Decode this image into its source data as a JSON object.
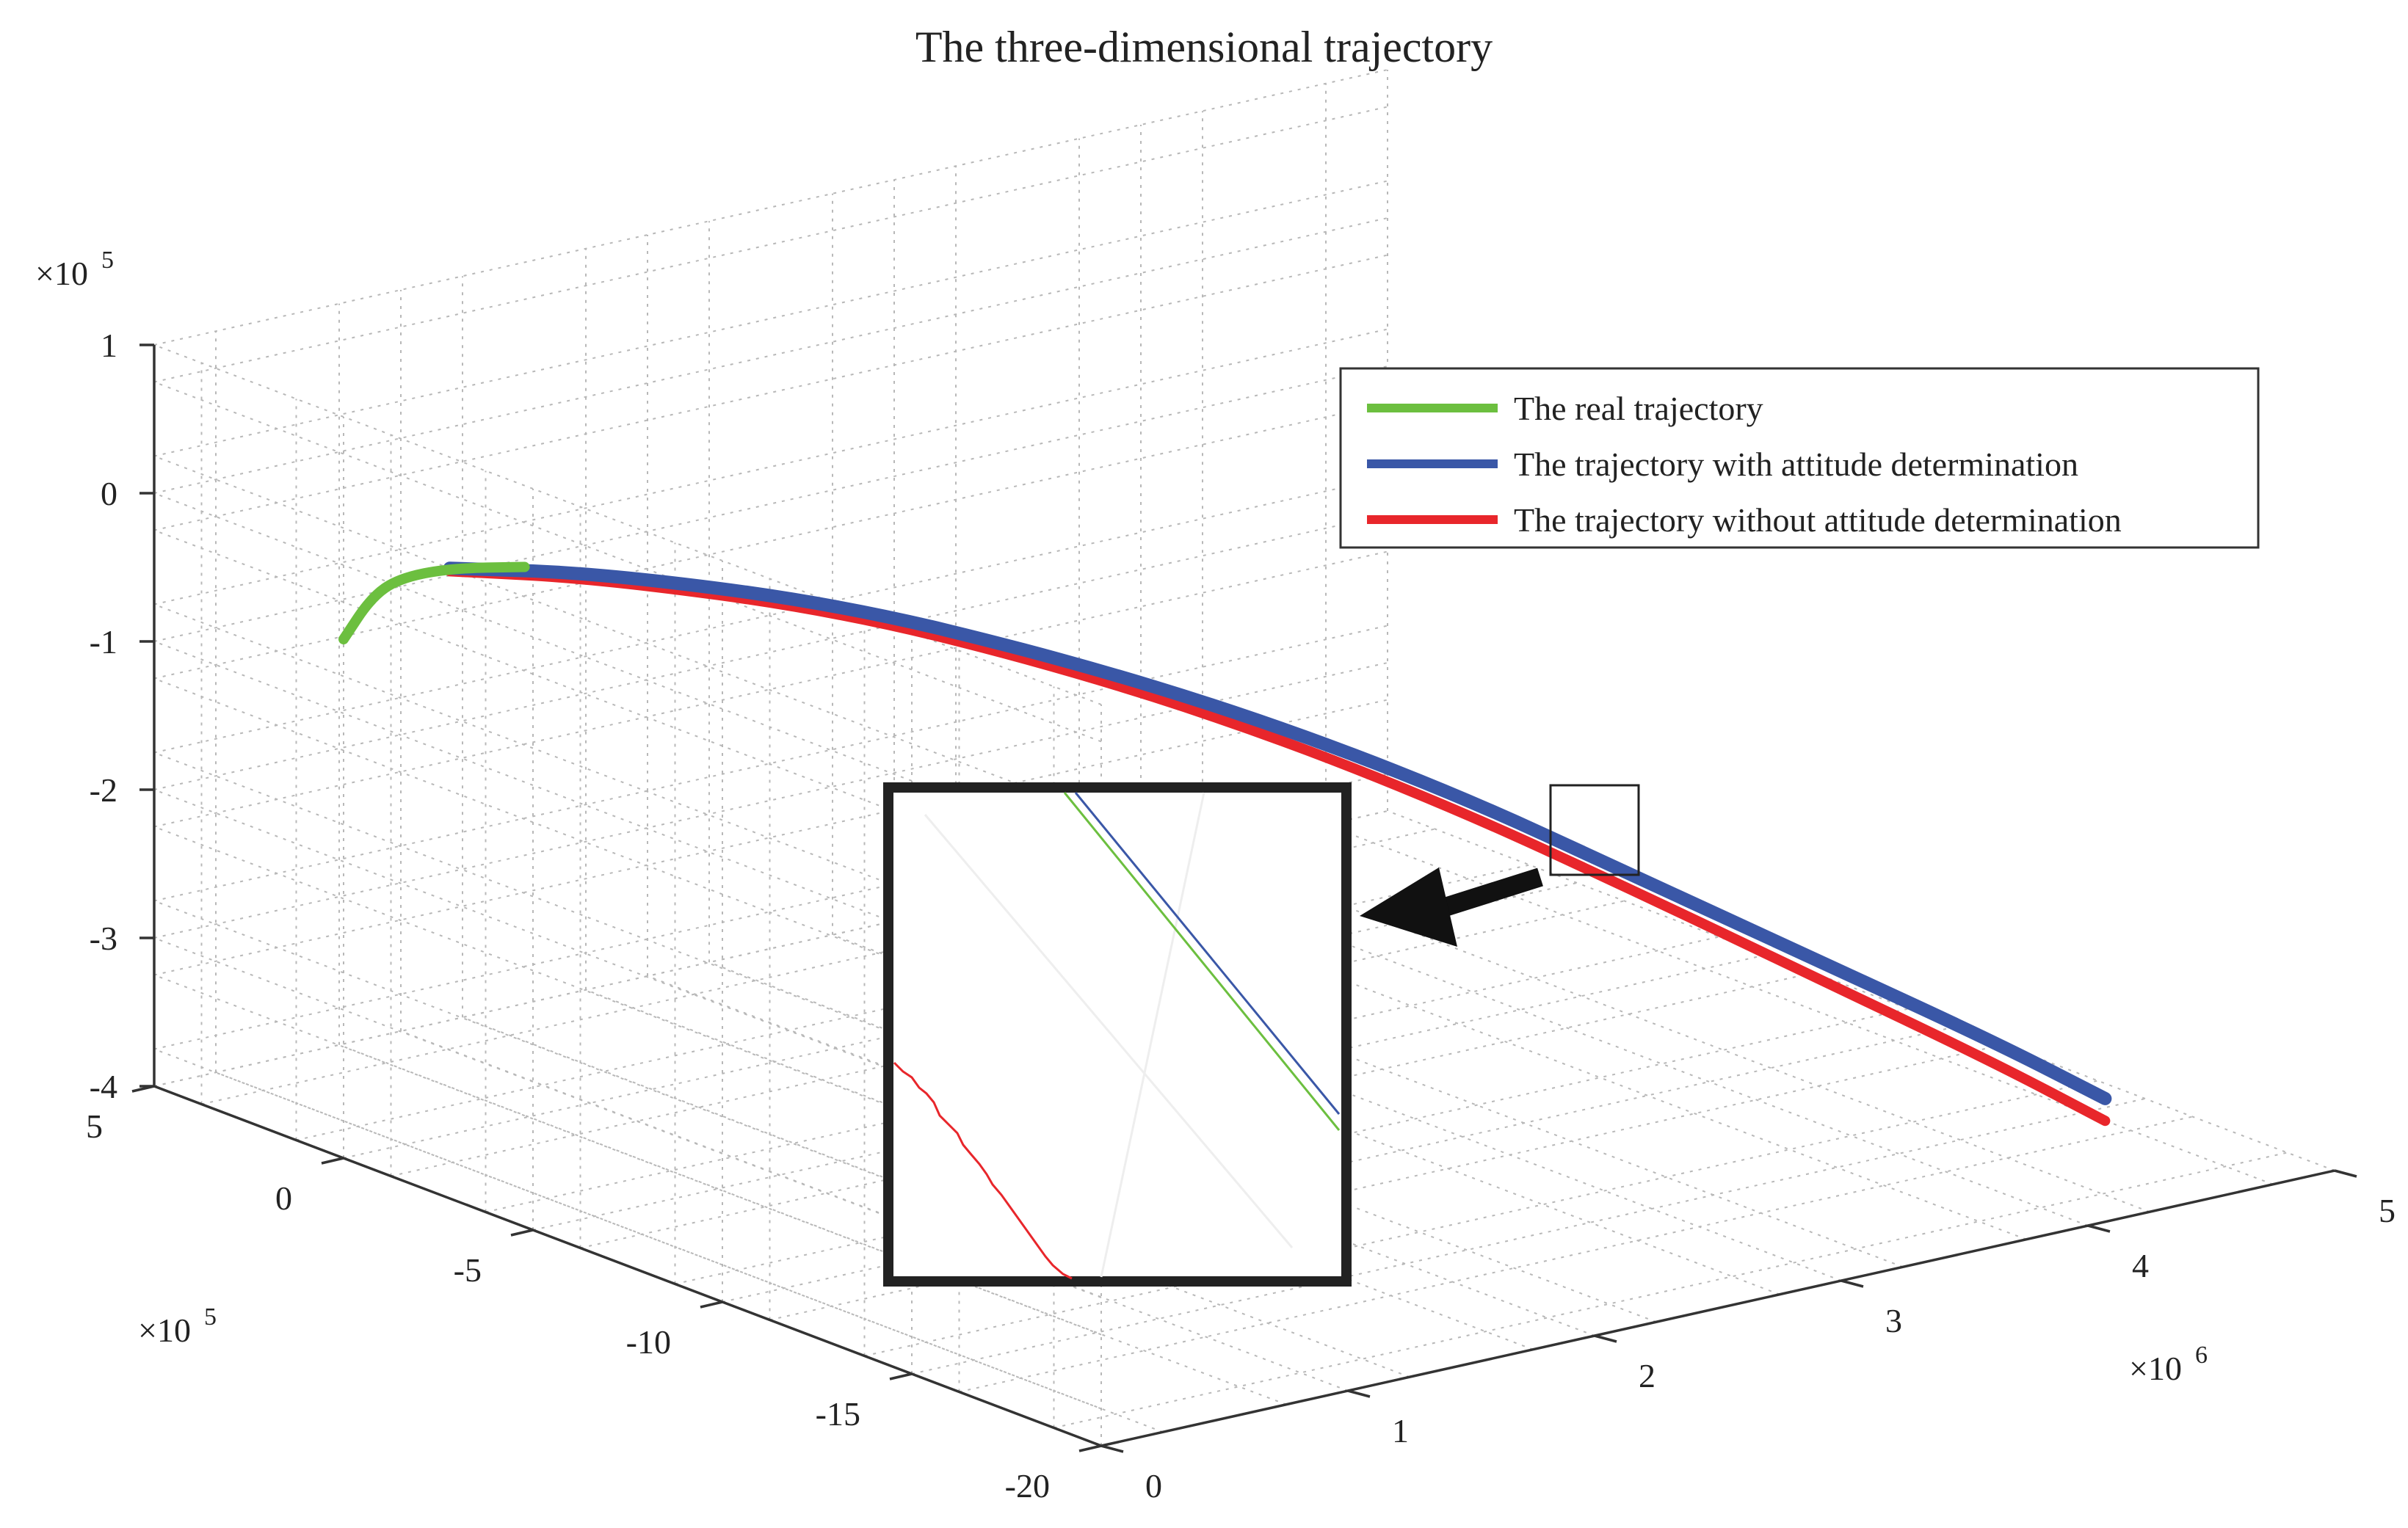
{
  "chart_data": {
    "type": "line",
    "title": "The three-dimensional trajectory",
    "axes": {
      "x": {
        "range": [
          0,
          5000000
        ],
        "ticks": [
          0,
          1,
          2,
          3,
          4,
          5
        ],
        "multiplier": "×10^6"
      },
      "y": {
        "range": [
          -2000000,
          500000
        ],
        "ticks": [
          5,
          0,
          -5,
          -10,
          -15,
          -20
        ],
        "multiplier": "×10^5"
      },
      "z": {
        "range": [
          -400000,
          100000
        ],
        "ticks": [
          1,
          0,
          -1,
          -2,
          -3,
          -4
        ],
        "multiplier": "×10^5"
      }
    },
    "grid": true,
    "legend_position": "top-right",
    "series": [
      {
        "name": "The real trajectory",
        "color": "#6cbf3f",
        "x": [
          0,
          50000,
          100000,
          200000,
          350000
        ],
        "y": [
          0,
          -40000,
          -80000,
          -150000,
          -250000
        ],
        "z": [
          -50000,
          -20000,
          -5000,
          5000,
          10000
        ]
      },
      {
        "name": "The trajectory with attitude determination",
        "color": "#3a57a7",
        "x": [
          200000,
          500000,
          1000000,
          1500000,
          2000000,
          2500000,
          3000000,
          3500000,
          4000000,
          4300000
        ],
        "y": [
          -150000,
          -350000,
          -650000,
          -900000,
          -1100000,
          -1300000,
          -1450000,
          -1600000,
          -1750000,
          -1850000
        ],
        "z": [
          5000,
          10000,
          0,
          -30000,
          -70000,
          -120000,
          -180000,
          -240000,
          -300000,
          -340000
        ]
      },
      {
        "name": "The trajectory without attitude determination",
        "color": "#e8262b",
        "x": [
          200000,
          500000,
          1000000,
          1500000,
          2000000,
          2500000,
          3000000,
          3500000,
          4000000,
          4300000
        ],
        "y": [
          -150000,
          -350000,
          -650000,
          -900000,
          -1100000,
          -1300000,
          -1450000,
          -1600000,
          -1750000,
          -1850000
        ],
        "z": [
          3000,
          6000,
          -5000,
          -36000,
          -78000,
          -130000,
          -190000,
          -252000,
          -314000,
          -355000
        ]
      }
    ]
  },
  "legend": {
    "items": [
      "The real trajectory",
      "The trajectory with attitude determination",
      "The trajectory without attitude determination"
    ]
  },
  "exponents": {
    "z": {
      "base": "×10",
      "power": "5"
    },
    "y": {
      "base": "×10",
      "power": "5"
    },
    "x": {
      "base": "×10",
      "power": "6"
    }
  },
  "colors": {
    "real": "#6cbf3f",
    "with": "#3a57a7",
    "without": "#e8262b",
    "inset_frame": "#222222",
    "arrow": "#111111"
  }
}
